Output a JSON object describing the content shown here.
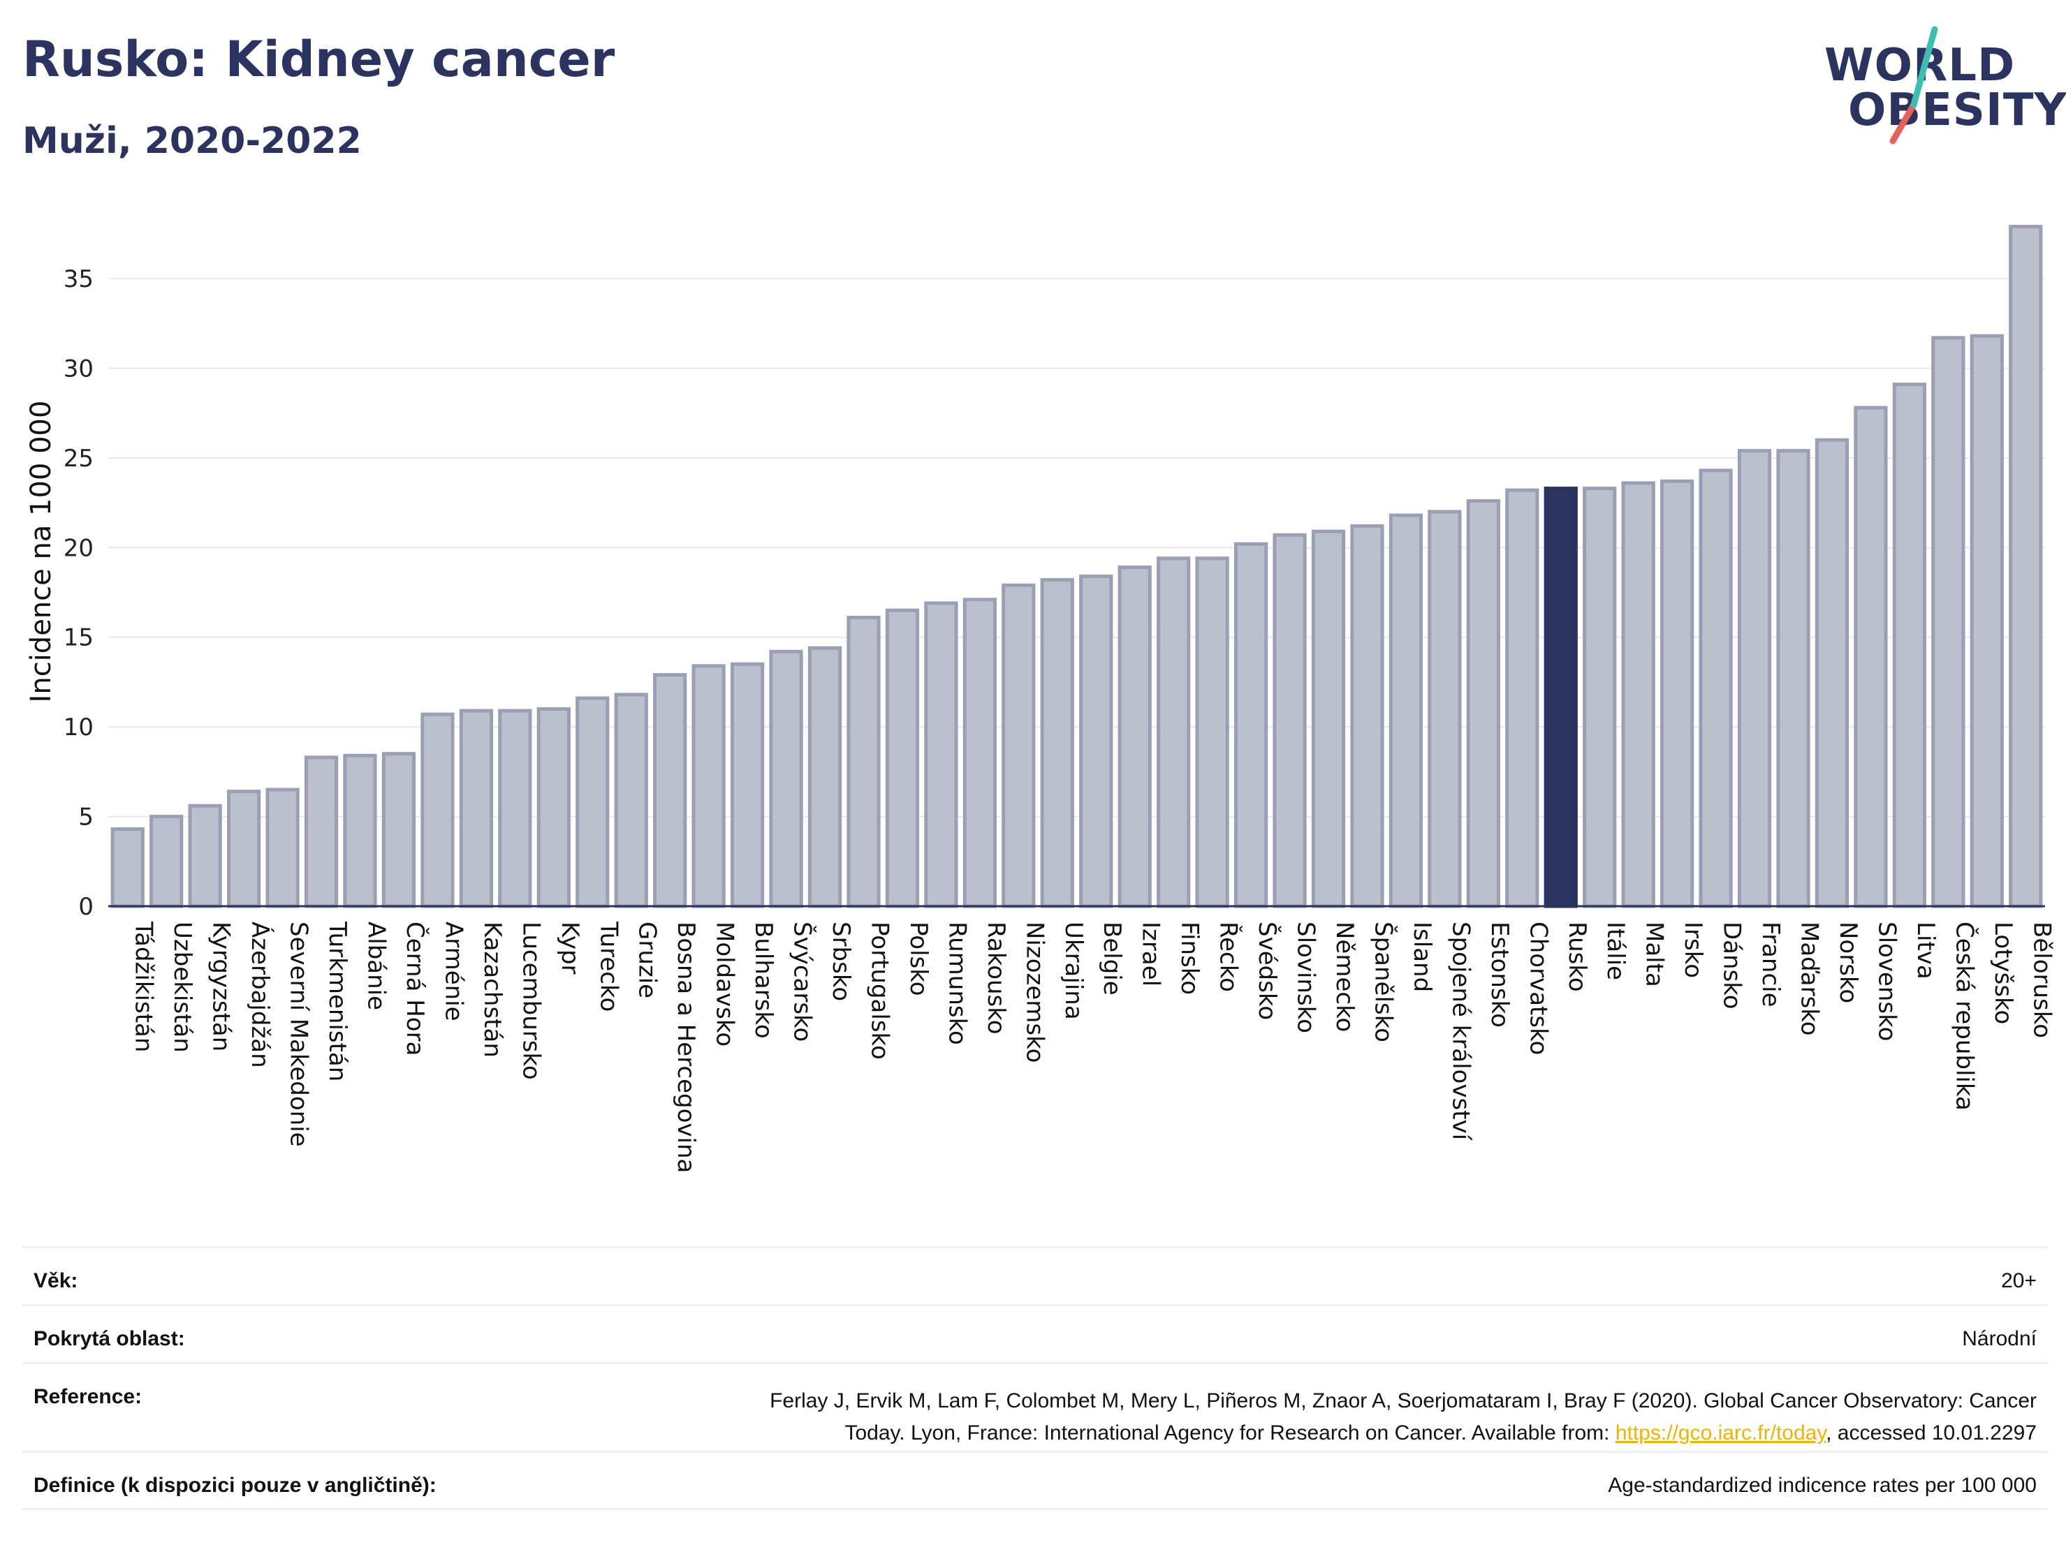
{
  "header": {
    "title": "Rusko: Kidney cancer",
    "subtitle": "Muži, 2020-2022"
  },
  "logo": {
    "line1": "WORLD",
    "line2": "OBESITY"
  },
  "colors": {
    "bar": "#bcc0cd",
    "bar_border": "#9a9fb4",
    "highlight": "#2b3360",
    "accent_teal": "#3bbfb0",
    "accent_red": "#e8605a"
  },
  "chart_data": {
    "type": "bar",
    "ylabel": "Incidence na 100 000",
    "ylim": [
      0,
      38
    ],
    "yticks": [
      0,
      5,
      10,
      15,
      20,
      25,
      30,
      35
    ],
    "grid": true,
    "highlight": "Rusko",
    "categories": [
      "Tádžikistán",
      "Uzbekistán",
      "Kyrgyzstán",
      "Ázerbajdžán",
      "Severní Makedonie",
      "Turkmenistán",
      "Albánie",
      "Černá Hora",
      "Arménie",
      "Kazachstán",
      "Lucembursko",
      "Kypr",
      "Turecko",
      "Gruzie",
      "Bosna a Hercegovina",
      "Moldavsko",
      "Bulharsko",
      "Švýcarsko",
      "Srbsko",
      "Portugalsko",
      "Polsko",
      "Rumunsko",
      "Rakousko",
      "Nizozemsko",
      "Ukrajina",
      "Belgie",
      "Izrael",
      "Finsko",
      "Řecko",
      "Švédsko",
      "Slovinsko",
      "Německo",
      "Španělsko",
      "Island",
      "Spojené království",
      "Estonsko",
      "Chorvatsko",
      "Rusko",
      "Itálie",
      "Malta",
      "Irsko",
      "Dánsko",
      "Francie",
      "Maďarsko",
      "Norsko",
      "Slovensko",
      "Litva",
      "Česká republika",
      "Lotyšsko",
      "Bělorusko"
    ],
    "values": [
      4.3,
      5.0,
      5.6,
      6.4,
      6.5,
      8.3,
      8.4,
      8.5,
      10.7,
      10.9,
      10.9,
      11.0,
      11.6,
      11.8,
      12.9,
      13.4,
      13.5,
      14.2,
      14.4,
      16.1,
      16.5,
      16.9,
      17.1,
      17.9,
      18.2,
      18.4,
      18.9,
      19.4,
      19.4,
      20.2,
      20.7,
      20.9,
      21.2,
      21.8,
      22.0,
      22.6,
      23.2,
      23.3,
      23.3,
      23.6,
      23.7,
      24.3,
      25.4,
      25.4,
      26.0,
      27.8,
      29.1,
      31.7,
      31.8,
      37.9
    ]
  },
  "info": {
    "age": {
      "label": "Věk:",
      "value": "20+"
    },
    "area": {
      "label": "Pokrytá oblast:",
      "value": "Národní"
    },
    "reference": {
      "label": "Reference:",
      "line1": "Ferlay J, Ervik M, Lam F, Colombet M, Mery L, Piñeros M, Znaor A, Soerjomataram I, Bray F (2020). Global Cancer Observatory: Cancer",
      "line2_pre": "Today. Lyon, France: International Agency for Research on Cancer. Available from: ",
      "link": "https://gco.iarc.fr/today",
      "line2_post": ", accessed 10.01.2297"
    },
    "definition": {
      "label": "Definice (k dispozici pouze v angličtině):",
      "value": "Age-standardized indicence rates per 100 000"
    }
  }
}
